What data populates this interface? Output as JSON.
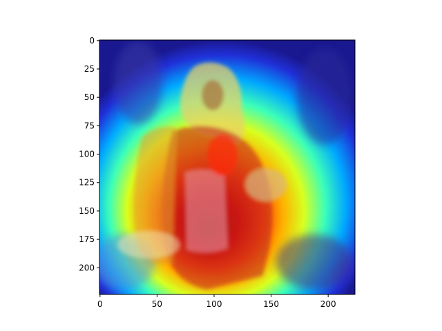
{
  "chart_data": {
    "type": "heatmap",
    "title": "",
    "xlabel": "",
    "ylabel": "",
    "xlim": [
      -0.5,
      223.5
    ],
    "ylim": [
      223.5,
      -0.5
    ],
    "x_ticks": [
      0,
      50,
      100,
      150,
      200
    ],
    "y_ticks": [
      0,
      25,
      50,
      75,
      100,
      125,
      150,
      175,
      200
    ],
    "x_tick_labels": [
      "0",
      "50",
      "100",
      "150",
      "200"
    ],
    "y_tick_labels": [
      "0",
      "25",
      "50",
      "75",
      "100",
      "125",
      "150",
      "175",
      "200"
    ],
    "colormap": "jet",
    "overlay": "photo of a woman in a headscarf holding a small animal, with a jet-colormap saliency heatmap overlaid",
    "heat_peak": [
      85,
      170
    ],
    "grid": false
  }
}
